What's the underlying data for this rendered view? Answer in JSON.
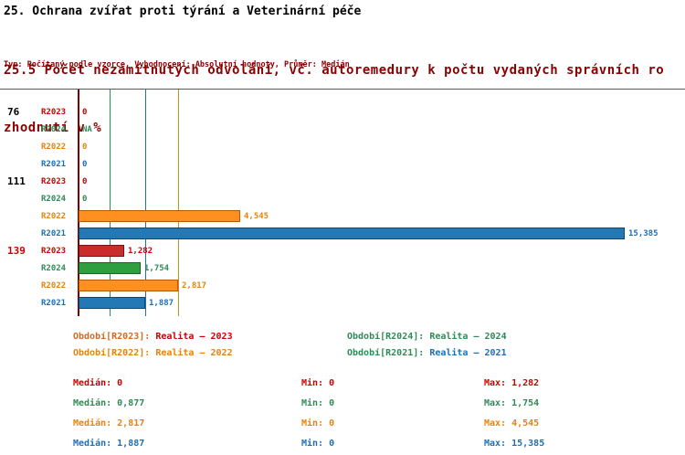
{
  "title": "25. Ochrana zvířat proti týrání a Veterinární péče",
  "subtitle": {
    "line1": "25.5 Počet nezamítnutých odvolání, vč. autoremedury k počtu vydaných správních ro",
    "line2": "zhodnutí v %"
  },
  "meta_line": "Typ: Počítaný podle vzorce, Vyhodnocení: Absolutní hodnoty, Průměr: Medián",
  "chart_data": {
    "type": "bar",
    "orientation": "horizontal",
    "unit": "%",
    "xlim": [
      0,
      16.4
    ],
    "axis_color": "#800000",
    "top_border_color": "#008080",
    "series_order": [
      "R2023",
      "R2024",
      "R2022",
      "R2021"
    ],
    "series_colors": {
      "R2023": {
        "fill": "#cc2b2b",
        "border": "#7a1010",
        "text": "#cc0000"
      },
      "R2024": {
        "fill": "#2f9e3f",
        "border": "#14691f",
        "text": "#2e8b57"
      },
      "R2022": {
        "fill": "#ff9020",
        "border": "#b35900",
        "text": "#e8820c"
      },
      "R2021": {
        "fill": "#2478b4",
        "border": "#0d466e",
        "text": "#1f6fb4"
      }
    },
    "groups": [
      {
        "label": "76",
        "label_color": "#000000",
        "bars": [
          {
            "series": "R2023",
            "value": 0,
            "display": "0"
          },
          {
            "series": "R2024",
            "value": null,
            "display": "NA"
          },
          {
            "series": "R2022",
            "value": 0,
            "display": "0"
          },
          {
            "series": "R2021",
            "value": 0,
            "display": "0"
          }
        ]
      },
      {
        "label": "111",
        "label_color": "#000000",
        "bars": [
          {
            "series": "R2023",
            "value": 0,
            "display": "0"
          },
          {
            "series": "R2024",
            "value": 0,
            "display": "0"
          },
          {
            "series": "R2022",
            "value": 4.545,
            "display": "4,545"
          },
          {
            "series": "R2021",
            "value": 15.385,
            "display": "15,385"
          }
        ]
      },
      {
        "label": "139",
        "label_color": "#cc0000",
        "bars": [
          {
            "series": "R2023",
            "value": 1.282,
            "display": "1,282"
          },
          {
            "series": "R2024",
            "value": 1.754,
            "display": "1,754"
          },
          {
            "series": "R2022",
            "value": 2.817,
            "display": "2,817"
          },
          {
            "series": "R2021",
            "value": 1.887,
            "display": "1,887"
          }
        ]
      }
    ],
    "median_lines": [
      {
        "series": "R2023",
        "value": 0,
        "color": "#800000"
      },
      {
        "series": "R2024",
        "value": 0.877,
        "color": "#2e8b57"
      },
      {
        "series": "R2021",
        "value": 1.887,
        "color": "#1f6fb4"
      },
      {
        "series": "R2022",
        "value": 2.817,
        "color": "#e8820c"
      }
    ],
    "legend": [
      {
        "series": "R2023",
        "label": "Období[R2023]:",
        "value": "Realita – 2023",
        "label_color": "#d2691e",
        "value_color": "#cc0000",
        "col": 0,
        "row": 0
      },
      {
        "series": "R2024",
        "label": "Období[R2024]:",
        "value": "Realita – 2024",
        "label_color": "#2e8b57",
        "value_color": "#2e8b57",
        "col": 1,
        "row": 0
      },
      {
        "series": "R2022",
        "label": "Období[R2022]:",
        "value": "Realita – 2022",
        "label_color": "#e8820c",
        "value_color": "#e8820c",
        "col": 0,
        "row": 1
      },
      {
        "series": "R2021",
        "label": "Období[R2021]:",
        "value": "Realita – 2021",
        "label_color": "#2e8b57",
        "value_color": "#1f6fb4",
        "col": 1,
        "row": 1
      }
    ],
    "stat_labels": {
      "median": "Medián",
      "min": "Min",
      "max": "Max"
    },
    "stats": [
      {
        "series": "R2023",
        "color": "#cc0000",
        "median": "0",
        "min": "0",
        "max": "1,282"
      },
      {
        "series": "R2024",
        "color": "#2e8b57",
        "median": "0,877",
        "min": "0",
        "max": "1,754"
      },
      {
        "series": "R2022",
        "color": "#e8820c",
        "median": "2,817",
        "min": "0",
        "max": "4,545"
      },
      {
        "series": "R2021",
        "color": "#1f6fb4",
        "median": "1,887",
        "min": "0",
        "max": "15,385"
      }
    ]
  }
}
